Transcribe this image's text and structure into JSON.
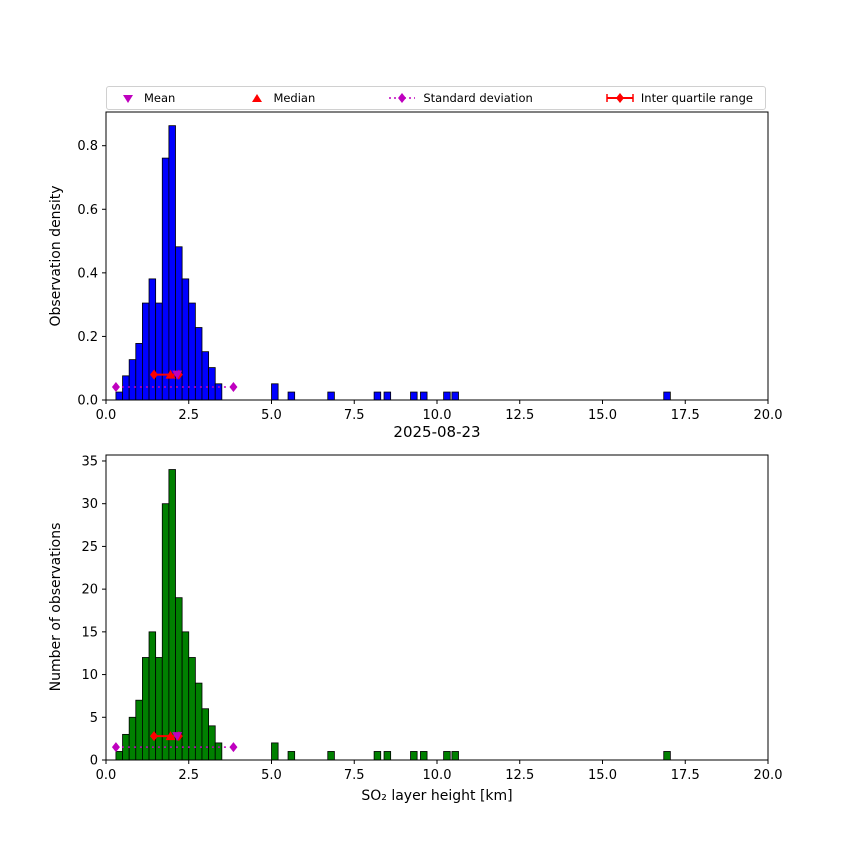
{
  "figure": {
    "title": "2025-08-23",
    "xlabel": "SO₂ layer height [km]",
    "background": "#ffffff"
  },
  "legend": {
    "items": [
      {
        "label": "Mean",
        "marker": "triangle-down",
        "color": "#bf00bf"
      },
      {
        "label": "Median",
        "marker": "triangle-up",
        "color": "#ff0000"
      },
      {
        "label": "Standard deviation",
        "marker": "diamond-dotted-line",
        "color": "#bf00bf"
      },
      {
        "label": "Inter quartile range",
        "marker": "diamond-solid-line",
        "color": "#ff0000"
      }
    ]
  },
  "chart_data": [
    {
      "type": "bar",
      "subtype": "histogram",
      "ylabel": "Observation density",
      "xlabel": "",
      "title": "",
      "bar_color": "#0000ff",
      "edge_color": "#000000",
      "grid": false,
      "legend_position": "top",
      "xlim": [
        0,
        20
      ],
      "ylim": [
        0,
        0.906
      ],
      "xticks": [
        0.0,
        2.5,
        5.0,
        7.5,
        10.0,
        12.5,
        15.0,
        17.5,
        20.0
      ],
      "yticks": [
        0.0,
        0.2,
        0.4,
        0.6,
        0.8
      ],
      "ytick_decimals": 1,
      "bin_width": 0.2,
      "bins_left": [
        0.3,
        0.5,
        0.7,
        0.9,
        1.1,
        1.3,
        1.5,
        1.7,
        1.9,
        2.1,
        2.3,
        2.5,
        2.7,
        2.9,
        3.1,
        3.3,
        5.0,
        5.5,
        6.7,
        8.1,
        8.4,
        9.2,
        9.5,
        10.2,
        10.45,
        16.85
      ],
      "values": [
        0.025,
        0.076,
        0.127,
        0.178,
        0.305,
        0.381,
        0.305,
        0.761,
        0.863,
        0.482,
        0.381,
        0.305,
        0.228,
        0.152,
        0.102,
        0.051,
        0.051,
        0.025,
        0.025,
        0.025,
        0.025,
        0.025,
        0.025,
        0.025,
        0.025,
        0.025
      ],
      "markers": {
        "mean_x": 2.15,
        "median_x": 1.95,
        "marker_y": 0.08,
        "std_x1": 0.3,
        "std_x2": 3.85,
        "std_y": 0.041,
        "iqr_x1": 1.45,
        "iqr_x2": 2.2,
        "iqr_y": 0.08
      },
      "marker_colors": {
        "mean": "#bf00bf",
        "median": "#ff0000",
        "std": "#bf00bf",
        "iqr": "#ff0000"
      }
    },
    {
      "type": "bar",
      "subtype": "histogram",
      "ylabel": "Number of observations",
      "xlabel": "SO₂ layer height [km]",
      "title": "2025-08-23",
      "bar_color": "#008000",
      "edge_color": "#000000",
      "grid": false,
      "legend_position": "top",
      "xlim": [
        0,
        20
      ],
      "ylim": [
        0,
        35.7
      ],
      "xticks": [
        0.0,
        2.5,
        5.0,
        7.5,
        10.0,
        12.5,
        15.0,
        17.5,
        20.0
      ],
      "yticks": [
        0,
        5,
        10,
        15,
        20,
        25,
        30,
        35
      ],
      "ytick_decimals": 0,
      "bin_width": 0.2,
      "bins_left": [
        0.3,
        0.5,
        0.7,
        0.9,
        1.1,
        1.3,
        1.5,
        1.7,
        1.9,
        2.1,
        2.3,
        2.5,
        2.7,
        2.9,
        3.1,
        3.3,
        5.0,
        5.5,
        6.7,
        8.1,
        8.4,
        9.2,
        9.5,
        10.2,
        10.45,
        16.85
      ],
      "values": [
        1,
        3,
        5,
        7,
        12,
        15,
        12,
        30,
        34,
        19,
        15,
        12,
        9,
        6,
        4,
        2,
        2,
        1,
        1,
        1,
        1,
        1,
        1,
        1,
        1,
        1
      ],
      "markers": {
        "mean_x": 2.15,
        "median_x": 1.95,
        "marker_y": 2.8,
        "std_x1": 0.3,
        "std_x2": 3.85,
        "std_y": 1.5,
        "iqr_x1": 1.45,
        "iqr_x2": 2.2,
        "iqr_y": 2.8
      },
      "marker_colors": {
        "mean": "#bf00bf",
        "median": "#ff0000",
        "std": "#bf00bf",
        "iqr": "#ff0000"
      }
    }
  ]
}
